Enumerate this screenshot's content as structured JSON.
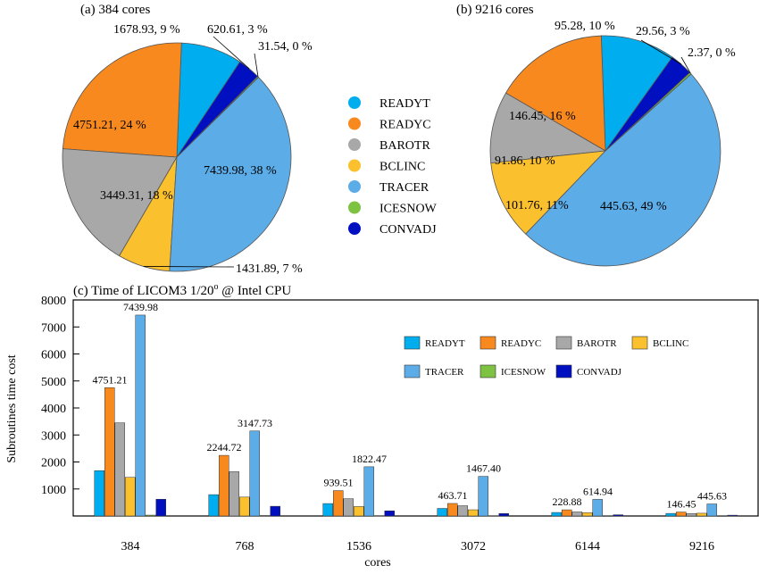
{
  "colors": {
    "READYT": "#00aeef",
    "READYC": "#f7891e",
    "BAROTR": "#a8a8a8",
    "BCLINC": "#fbc02d",
    "TRACER": "#5cace8",
    "ICESNOW": "#7ec242",
    "CONVADJ": "#0010c0"
  },
  "chart_data": [
    {
      "type": "pie",
      "title": "(a) 384 cores",
      "slices": [
        {
          "name": "READYT",
          "value": 1678.93,
          "label": "1678.93,  9 %"
        },
        {
          "name": "READYC",
          "value": 4751.21,
          "label": "4751.21,  24 %"
        },
        {
          "name": "BAROTR",
          "value": 3449.31,
          "label": "3449.31,  18 %"
        },
        {
          "name": "BCLINC",
          "value": 1431.89,
          "label": "1431.89,   7 %"
        },
        {
          "name": "TRACER",
          "value": 7439.98,
          "label": "7439.98,  38 %"
        },
        {
          "name": "ICESNOW",
          "value": 31.54,
          "label": "31.54,   0 %"
        },
        {
          "name": "CONVADJ",
          "value": 620.61,
          "label": "620.61,   3 %"
        }
      ]
    },
    {
      "type": "pie",
      "title": "(b) 9216 cores",
      "slices": [
        {
          "name": "READYT",
          "value": 95.28,
          "label": "95.28,  10 %"
        },
        {
          "name": "READYC",
          "value": 146.45,
          "label": "146.45,  16 %"
        },
        {
          "name": "BAROTR",
          "value": 91.86,
          "label": "91.86,  10 %"
        },
        {
          "name": "BCLINC",
          "value": 101.76,
          "label": "101.76,  11%"
        },
        {
          "name": "TRACER",
          "value": 445.63,
          "label": "445.63,  49 %"
        },
        {
          "name": "ICESNOW",
          "value": 2.37,
          "label": "2.37,   0 %"
        },
        {
          "name": "CONVADJ",
          "value": 29.56,
          "label": "29.56,   3 %"
        }
      ]
    },
    {
      "type": "bar",
      "title": "(c) Time of LICOM3 1/20",
      "title_sup": "o",
      "title_suffix": " @ Intel CPU",
      "xlabel": "cores",
      "ylabel": "Subroutines time cost",
      "ylim": [
        0,
        8000
      ],
      "yticks": [
        1000,
        2000,
        3000,
        4000,
        5000,
        6000,
        7000,
        8000
      ],
      "categories": [
        "384",
        "768",
        "1536",
        "3072",
        "6144",
        "9216"
      ],
      "series": [
        {
          "name": "READYT",
          "values": [
            1678.93,
            790,
            460,
            280,
            130,
            95.28
          ]
        },
        {
          "name": "READYC",
          "values": [
            4751.21,
            2244.72,
            939.51,
            463.71,
            228.88,
            146.45
          ]
        },
        {
          "name": "BAROTR",
          "values": [
            3449.31,
            1640,
            640,
            380,
            150,
            91.86
          ]
        },
        {
          "name": "BCLINC",
          "values": [
            1431.89,
            700,
            350,
            230,
            120,
            101.76
          ]
        },
        {
          "name": "TRACER",
          "values": [
            7439.98,
            3147.73,
            1822.47,
            1467.4,
            614.94,
            445.63
          ]
        },
        {
          "name": "ICESNOW",
          "values": [
            31.54,
            15,
            10,
            6,
            3,
            2.37
          ]
        },
        {
          "name": "CONVADJ",
          "values": [
            620.61,
            360,
            190,
            90,
            45,
            29.56
          ]
        }
      ],
      "data_labels": [
        {
          "category": "384",
          "series": "READYC",
          "text": "4751.21"
        },
        {
          "category": "384",
          "series": "TRACER",
          "text": "7439.98"
        },
        {
          "category": "768",
          "series": "READYC",
          "text": "2244.72"
        },
        {
          "category": "768",
          "series": "TRACER",
          "text": "3147.73"
        },
        {
          "category": "1536",
          "series": "READYC",
          "text": "939.51"
        },
        {
          "category": "1536",
          "series": "TRACER",
          "text": "1822.47"
        },
        {
          "category": "3072",
          "series": "READYC",
          "text": "463.71"
        },
        {
          "category": "3072",
          "series": "TRACER",
          "text": "1467.40"
        },
        {
          "category": "6144",
          "series": "READYC",
          "text": "228.88"
        },
        {
          "category": "6144",
          "series": "TRACER",
          "text": "614.94"
        },
        {
          "category": "9216",
          "series": "READYC",
          "text": "146.45"
        },
        {
          "category": "9216",
          "series": "TRACER",
          "text": "445.63"
        }
      ]
    }
  ]
}
